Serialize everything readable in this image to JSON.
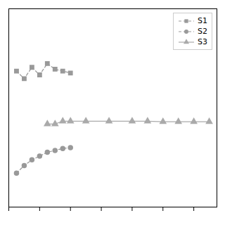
{
  "chart_data": {
    "type": "line",
    "series": [
      {
        "name": "S1",
        "color": "#999999",
        "marker": "square",
        "line_style": "dashed",
        "x": [
          1,
          2,
          3,
          4,
          5,
          6,
          7,
          8
        ],
        "values": [
          0.72,
          0.68,
          0.74,
          0.7,
          0.76,
          0.73,
          0.72,
          0.71
        ]
      },
      {
        "name": "S2",
        "color": "#999999",
        "marker": "circle",
        "line_style": "dashed",
        "x": [
          1,
          2,
          3,
          4,
          5,
          6,
          7,
          8
        ],
        "values": [
          0.18,
          0.22,
          0.25,
          0.27,
          0.29,
          0.3,
          0.31,
          0.315
        ]
      },
      {
        "name": "S3",
        "color": "#aaaaaa",
        "marker": "triangle",
        "line_style": "solid",
        "x": [
          5,
          6,
          7,
          8,
          10,
          13,
          16,
          18,
          20,
          22,
          24,
          26
        ],
        "values": [
          0.44,
          0.44,
          0.455,
          0.455,
          0.455,
          0.455,
          0.455,
          0.455,
          0.452,
          0.452,
          0.452,
          0.452
        ]
      }
    ],
    "xlim": [
      0,
      27
    ],
    "xticks": [
      0,
      4,
      8,
      12,
      16,
      20,
      24
    ],
    "ylim": [
      0.0,
      1.05
    ],
    "tick_labels": false,
    "grid": false,
    "legend": "upper right"
  }
}
